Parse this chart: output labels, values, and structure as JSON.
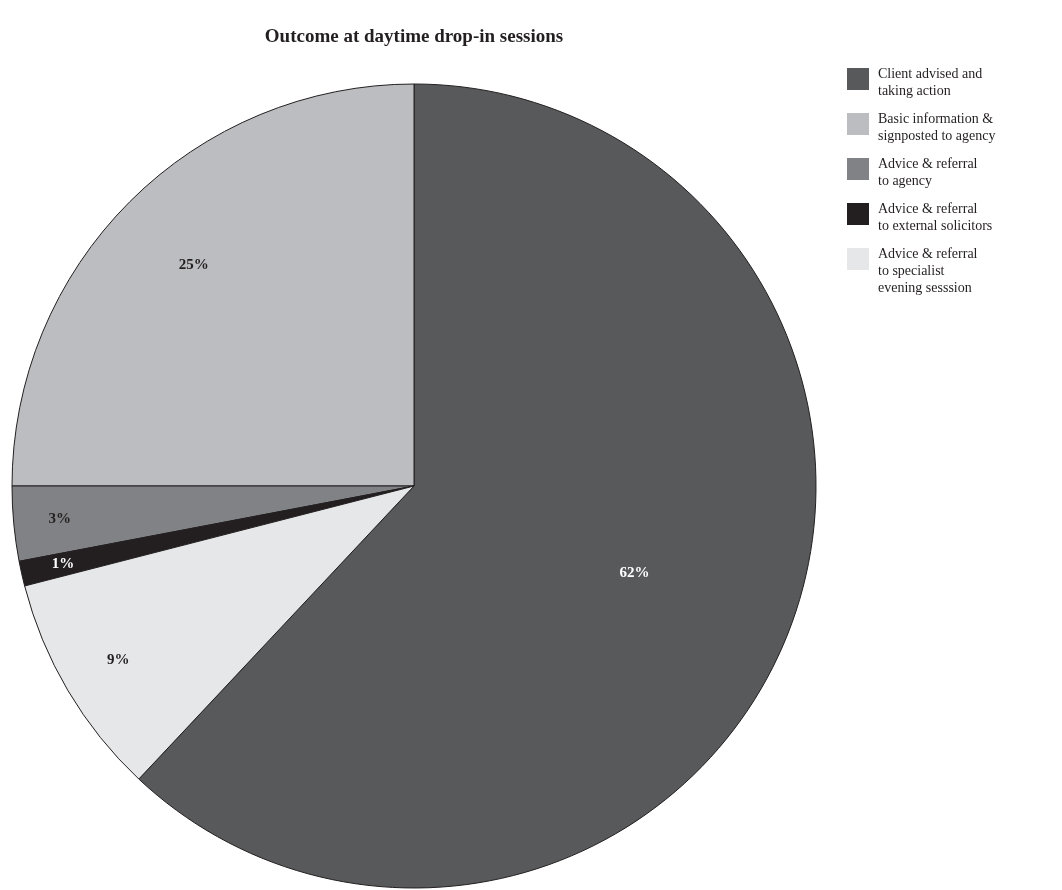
{
  "chart_data": {
    "type": "pie",
    "title": "Outcome at daytime drop-in sessions",
    "categories": [
      "Client advised and\ntaking action",
      "Basic information &\nsignposted to agency",
      "Advice & referral\nto agency",
      "Advice & referral\nto external solicitors",
      "Advice & referral\nto specialist\nevening sesssion"
    ],
    "values": [
      62,
      25,
      3,
      1,
      9
    ],
    "colors": [
      "#58595b",
      "#bcbdc0",
      "#808285",
      "#231f20",
      "#e6e7e8"
    ],
    "value_labels": [
      "62%",
      "25%",
      "3%",
      "1%",
      "9%"
    ],
    "legend": "right"
  }
}
